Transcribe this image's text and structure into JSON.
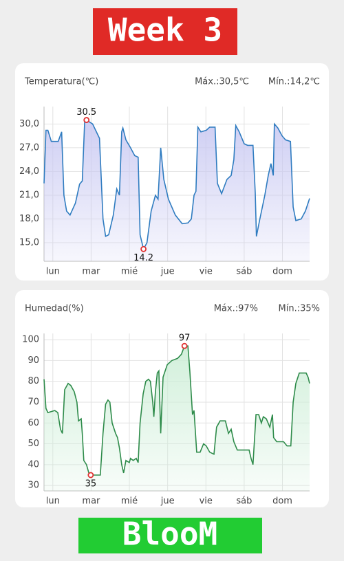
{
  "header": "Week 3",
  "footer": "BlooM",
  "chart_data": [
    {
      "type": "line",
      "title": "Temperatura(℃)",
      "stats": [
        "Máx.:30,5℃",
        "Mín.:14,2℃"
      ],
      "color": "#2f7cc0",
      "fill": "#c9c9f2",
      "x": [
        -0.23,
        -0.18,
        -0.13,
        -0.04,
        0.14,
        0.23,
        0.29,
        0.36,
        0.45,
        0.59,
        0.7,
        0.77,
        0.83,
        0.88,
        1.04,
        1.22,
        1.31,
        1.38,
        1.46,
        1.58,
        1.67,
        1.74,
        1.8,
        1.83,
        1.91,
        2.03,
        2.14,
        2.23,
        2.28,
        2.37,
        2.46,
        2.57,
        2.68,
        2.75,
        2.82,
        2.9,
        3.02,
        3.2,
        3.38,
        3.53,
        3.62,
        3.69,
        3.74,
        3.79,
        3.87,
        4.01,
        4.1,
        4.24,
        4.3,
        4.41,
        4.55,
        4.66,
        4.73,
        4.78,
        4.87,
        5.0,
        5.09,
        5.23,
        5.29,
        5.32,
        5.41,
        5.54,
        5.63,
        5.7,
        5.76,
        5.79,
        5.88,
        5.99,
        6.08,
        6.21,
        6.28,
        6.35,
        6.49,
        6.6,
        6.71
      ],
      "values": [
        22.5,
        29.2,
        29.2,
        27.8,
        27.8,
        29,
        21,
        19,
        18.5,
        20,
        22.4,
        22.8,
        30.2,
        30.5,
        30,
        28.2,
        18,
        15.8,
        16,
        18.5,
        21.8,
        21,
        29,
        29.5,
        28,
        27,
        26,
        25.8,
        16,
        14.2,
        15,
        19,
        21,
        20.5,
        27,
        23,
        20.5,
        18.5,
        17.4,
        17.5,
        18,
        21,
        21.5,
        29.6,
        29,
        29.2,
        29.6,
        29.6,
        22.5,
        21.2,
        23,
        23.5,
        25.5,
        29.8,
        29,
        27.5,
        27.3,
        27.3,
        21.3,
        15.8,
        18,
        21,
        23.5,
        25,
        23.5,
        30,
        29.5,
        28.5,
        28,
        27.8,
        19.5,
        17.8,
        18,
        19,
        20.6
      ],
      "xlim": [
        -0.23,
        6.71
      ],
      "xticks": [
        {
          "value": 0,
          "label": "lun"
        },
        {
          "value": 1,
          "label": "mar"
        },
        {
          "value": 2,
          "label": "mié"
        },
        {
          "value": 3,
          "label": "jue"
        },
        {
          "value": 4,
          "label": "vie"
        },
        {
          "value": 5,
          "label": "sáb"
        },
        {
          "value": 6,
          "label": "dom"
        }
      ],
      "ylim": [
        12.66,
        32.2
      ],
      "yticks": [
        {
          "value": 15,
          "label": "15,0"
        },
        {
          "value": 18,
          "label": "18,0"
        },
        {
          "value": 21,
          "label": "21,0"
        },
        {
          "value": 24,
          "label": "24,0"
        },
        {
          "value": 27,
          "label": "27,0"
        },
        {
          "value": 30,
          "label": "30,0"
        }
      ],
      "grid": true
    },
    {
      "type": "line",
      "title": "Humedad(%)",
      "stats": [
        "Máx.:97%",
        "Mín.:35%"
      ],
      "color": "#2e8b4a",
      "fill": "#cdeed7",
      "x": [
        -0.23,
        -0.18,
        -0.13,
        0.05,
        0.13,
        0.2,
        0.25,
        0.31,
        0.4,
        0.47,
        0.56,
        0.63,
        0.67,
        0.74,
        0.77,
        0.81,
        0.88,
        0.94,
        0.99,
        1.08,
        1.24,
        1.31,
        1.38,
        1.44,
        1.49,
        1.55,
        1.64,
        1.69,
        1.74,
        1.8,
        1.85,
        1.91,
        2.0,
        2.03,
        2.1,
        2.18,
        2.23,
        2.28,
        2.36,
        2.43,
        2.5,
        2.55,
        2.61,
        2.64,
        2.68,
        2.73,
        2.77,
        2.82,
        2.88,
        2.99,
        3.11,
        3.26,
        3.36,
        3.44,
        3.53,
        3.58,
        3.65,
        3.69,
        3.76,
        3.85,
        3.94,
        4.01,
        4.1,
        4.21,
        4.28,
        4.37,
        4.51,
        4.59,
        4.66,
        4.73,
        4.82,
        5.0,
        5.13,
        5.18,
        5.23,
        5.31,
        5.38,
        5.45,
        5.5,
        5.58,
        5.67,
        5.74,
        5.77,
        5.85,
        5.92,
        6.03,
        6.12,
        6.22,
        6.28,
        6.35,
        6.44,
        6.62,
        6.67,
        6.71
      ],
      "values": [
        81,
        67,
        65,
        66,
        65,
        57,
        55,
        76,
        79,
        78,
        75,
        70,
        61,
        62,
        55,
        42,
        40,
        36,
        35,
        35,
        35,
        55,
        69,
        71,
        70,
        60,
        55,
        53,
        48,
        40,
        36,
        42,
        41,
        43,
        42,
        43,
        41,
        60,
        74,
        80,
        81,
        80,
        70,
        63,
        75,
        84,
        85,
        55,
        82,
        88,
        90,
        91,
        93,
        97,
        97,
        85,
        64,
        66,
        46,
        46,
        50,
        49,
        46,
        45,
        58,
        61,
        61,
        55,
        57,
        51,
        47,
        47,
        47,
        43,
        40,
        64,
        64,
        60,
        63,
        62,
        58,
        64,
        53,
        51,
        51,
        51,
        49,
        49,
        70,
        79,
        84,
        84,
        82,
        79
      ],
      "xlim": [
        -0.23,
        6.71
      ],
      "xticks": [
        {
          "value": 0,
          "label": "lun"
        },
        {
          "value": 1,
          "label": "mar"
        },
        {
          "value": 2,
          "label": "mié"
        },
        {
          "value": 3,
          "label": "jue"
        },
        {
          "value": 4,
          "label": "vie"
        },
        {
          "value": 5,
          "label": "sáb"
        },
        {
          "value": 6,
          "label": "dom"
        }
      ],
      "ylim": [
        27.4,
        103
      ],
      "yticks": [
        30,
        40,
        50,
        60,
        70,
        80,
        90,
        100
      ],
      "grid": true
    }
  ]
}
